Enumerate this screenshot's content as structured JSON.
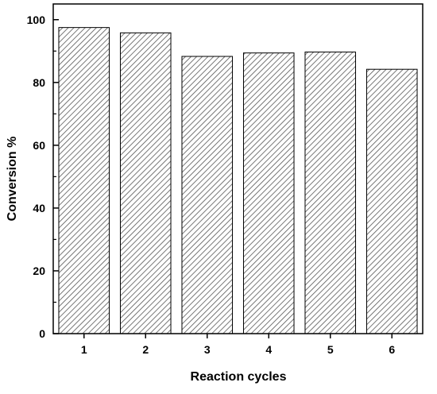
{
  "chart_data": {
    "type": "bar",
    "categories": [
      "1",
      "2",
      "3",
      "4",
      "5",
      "6"
    ],
    "values": [
      97.5,
      95.8,
      88.3,
      89.4,
      89.7,
      84.2
    ],
    "xlabel": "Reaction cycles",
    "ylabel": "Conversion %",
    "ylim": [
      0,
      105
    ],
    "yticks": [
      "0",
      "20",
      "40",
      "60",
      "80",
      "100"
    ],
    "grid": false,
    "legend": "none",
    "bar_fill": "diagonal-hatch",
    "colors": {
      "bar_edge": "#000000",
      "hatch": "#555555",
      "axis": "#000000"
    }
  }
}
